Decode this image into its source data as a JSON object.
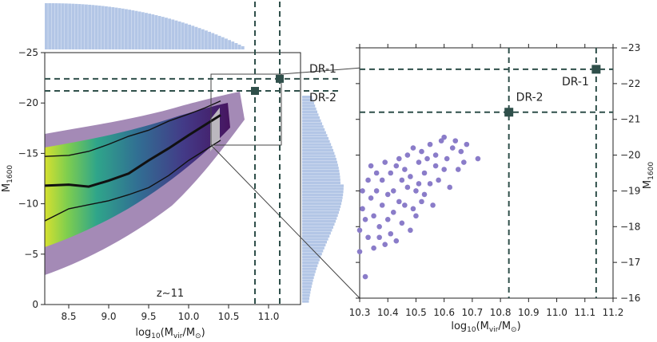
{
  "colors": {
    "hist": "#b3c6e6",
    "marker": "#2f4f4a",
    "dash": "#2f4f4a",
    "scatter": "#8a7cc9",
    "band": "#c8c8c8",
    "axis": "#222222"
  },
  "chart_data": [
    {
      "id": "main",
      "type": "heatmap",
      "title": "",
      "xlabel": "log10(Mvir/M⊙)",
      "ylabel": "M1600",
      "xlim": [
        8.2,
        11.4
      ],
      "ylim": [
        0,
        -25
      ],
      "x_ticks": [
        "8.5",
        "9.0",
        "9.5",
        "10.0",
        "10.5",
        "11.0"
      ],
      "y_ticks": [
        "0",
        "−5",
        "−10",
        "−15",
        "−20",
        "−25"
      ],
      "annotation": "z∼11",
      "median_line": {
        "x": [
          8.2,
          8.5,
          8.75,
          9.0,
          9.25,
          9.5,
          9.75,
          10.0,
          10.2,
          10.4
        ],
        "y": [
          -11.8,
          -11.9,
          -11.7,
          -12.3,
          -13.0,
          -14.3,
          -15.5,
          -16.8,
          -17.8,
          -18.8
        ]
      },
      "upper_line": {
        "x": [
          8.2,
          8.5,
          8.75,
          9.0,
          9.25,
          9.5,
          9.75,
          10.0,
          10.2,
          10.4
        ],
        "y": [
          -14.7,
          -14.8,
          -15.2,
          -15.9,
          -16.7,
          -17.3,
          -18.2,
          -18.9,
          -19.5,
          -20.2
        ]
      },
      "lower_line": {
        "x": [
          8.2,
          8.5,
          8.75,
          9.0,
          9.25,
          9.5,
          9.75,
          10.0,
          10.2,
          10.4
        ],
        "y": [
          -8.3,
          -9.5,
          -9.9,
          -10.3,
          -10.9,
          -11.6,
          -12.8,
          -14.3,
          -15.3,
          -16.3
        ]
      },
      "vlines": [
        10.83,
        11.14
      ],
      "hlines": [
        -22.4,
        -21.2
      ],
      "markers": [
        {
          "label": "DR-1",
          "x": 11.14,
          "y": -22.4
        },
        {
          "label": "DR-2",
          "x": 10.83,
          "y": -21.2
        }
      ],
      "inset_box": {
        "x": [
          10.3,
          11.2
        ],
        "y": [
          -16,
          -23
        ]
      }
    },
    {
      "id": "zoom",
      "type": "scatter",
      "xlabel": "log10(Mvir/M⊙)",
      "ylabel": "M1600",
      "xlim": [
        10.3,
        11.2
      ],
      "ylim": [
        -16,
        -23
      ],
      "x_ticks": [
        "10.3",
        "10.4",
        "10.5",
        "10.6",
        "10.7",
        "10.8",
        "10.9",
        "11.0",
        "11.1",
        "11.2"
      ],
      "y_ticks": [
        "−16",
        "−17",
        "−18",
        "−19",
        "−20",
        "−21",
        "−22",
        "−23"
      ],
      "vlines": [
        10.83,
        11.14
      ],
      "hlines": [
        -22.4,
        -21.2
      ],
      "markers": [
        {
          "label": "DR-1",
          "x": 11.14,
          "y": -22.4
        },
        {
          "label": "DR-2",
          "x": 10.83,
          "y": -21.2
        }
      ],
      "points": [
        [
          10.3,
          -17.3
        ],
        [
          10.3,
          -17.9
        ],
        [
          10.31,
          -18.5
        ],
        [
          10.31,
          -19.0
        ],
        [
          10.32,
          -16.6
        ],
        [
          10.32,
          -18.2
        ],
        [
          10.33,
          -19.3
        ],
        [
          10.33,
          -17.7
        ],
        [
          10.34,
          -18.8
        ],
        [
          10.34,
          -19.7
        ],
        [
          10.35,
          -17.4
        ],
        [
          10.35,
          -18.3
        ],
        [
          10.36,
          -19.0
        ],
        [
          10.36,
          -19.5
        ],
        [
          10.37,
          -18.0
        ],
        [
          10.37,
          -17.7
        ],
        [
          10.38,
          -18.6
        ],
        [
          10.38,
          -19.3
        ],
        [
          10.39,
          -17.5
        ],
        [
          10.39,
          -19.8
        ],
        [
          10.4,
          -18.9
        ],
        [
          10.4,
          -18.2
        ],
        [
          10.41,
          -19.5
        ],
        [
          10.41,
          -17.8
        ],
        [
          10.42,
          -19.0
        ],
        [
          10.42,
          -18.4
        ],
        [
          10.43,
          -19.7
        ],
        [
          10.43,
          -17.6
        ],
        [
          10.44,
          -18.7
        ],
        [
          10.44,
          -19.9
        ],
        [
          10.45,
          -19.3
        ],
        [
          10.45,
          -18.1
        ],
        [
          10.46,
          -19.6
        ],
        [
          10.46,
          -18.6
        ],
        [
          10.47,
          -20.0
        ],
        [
          10.47,
          -19.1
        ],
        [
          10.48,
          -17.9
        ],
        [
          10.48,
          -19.4
        ],
        [
          10.49,
          -18.5
        ],
        [
          10.49,
          -20.2
        ],
        [
          10.5,
          -19.0
        ],
        [
          10.5,
          -18.3
        ],
        [
          10.51,
          -19.8
        ],
        [
          10.51,
          -19.2
        ],
        [
          10.52,
          -18.7
        ],
        [
          10.52,
          -20.1
        ],
        [
          10.53,
          -19.5
        ],
        [
          10.53,
          -18.9
        ],
        [
          10.54,
          -19.9
        ],
        [
          10.55,
          -19.2
        ],
        [
          10.55,
          -20.3
        ],
        [
          10.56,
          -18.6
        ],
        [
          10.57,
          -19.7
        ],
        [
          10.57,
          -20.0
        ],
        [
          10.58,
          -19.3
        ],
        [
          10.59,
          -20.4
        ],
        [
          10.6,
          -19.6
        ],
        [
          10.6,
          -20.5
        ],
        [
          10.61,
          -19.9
        ],
        [
          10.62,
          -19.1
        ],
        [
          10.63,
          -20.2
        ],
        [
          10.64,
          -20.4
        ],
        [
          10.65,
          -19.6
        ],
        [
          10.66,
          -20.1
        ],
        [
          10.67,
          -19.8
        ],
        [
          10.68,
          -20.3
        ],
        [
          10.72,
          -19.9
        ]
      ]
    }
  ]
}
